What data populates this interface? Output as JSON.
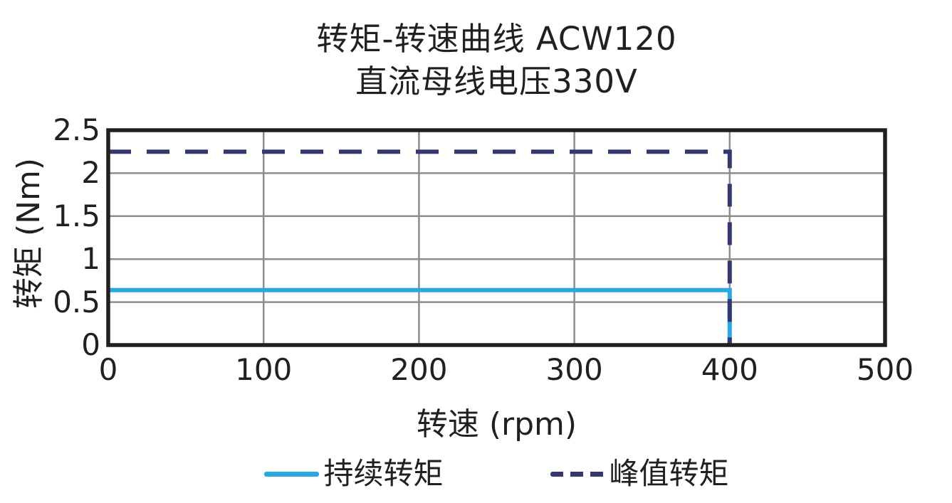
{
  "title": {
    "line1": "转矩-转速曲线  ACW120",
    "line2": "直流母线电压330V"
  },
  "chart_data": {
    "type": "line",
    "title": "转矩-转速曲线 ACW120",
    "subtitle": "直流母线电压330V",
    "xlabel": "转速 (rpm)",
    "ylabel": "转矩 (Nm)",
    "xlim": [
      0,
      500
    ],
    "ylim": [
      0,
      2.5
    ],
    "x_ticks": [
      0,
      100,
      200,
      300,
      400,
      500
    ],
    "x_tick_labels": [
      "0",
      "100",
      "200",
      "300",
      "400",
      "500"
    ],
    "y_ticks": [
      0,
      0.5,
      1,
      1.5,
      2,
      2.5
    ],
    "y_tick_labels": [
      "0",
      "0.5",
      "1",
      "1.5",
      "2",
      "2.5"
    ],
    "grid": true,
    "legend_position": "bottom-center",
    "series": [
      {
        "name": "持续转矩",
        "style": "solid",
        "color": "#29a9df",
        "points": [
          [
            0,
            0.64
          ],
          [
            400,
            0.64
          ],
          [
            400,
            0
          ]
        ]
      },
      {
        "name": "峰值转矩",
        "style": "dashed",
        "color": "#35386d",
        "points": [
          [
            0,
            2.25
          ],
          [
            400,
            2.25
          ],
          [
            400,
            0
          ]
        ]
      }
    ]
  },
  "legend": {
    "items": [
      {
        "label": "持续转矩"
      },
      {
        "label": "峰值转矩"
      }
    ]
  },
  "colors": {
    "text": "#231f20",
    "frame": "#231f20",
    "grid": "#8d8d90",
    "continuous_torque": "#29a9df",
    "peak_torque": "#35386d"
  }
}
